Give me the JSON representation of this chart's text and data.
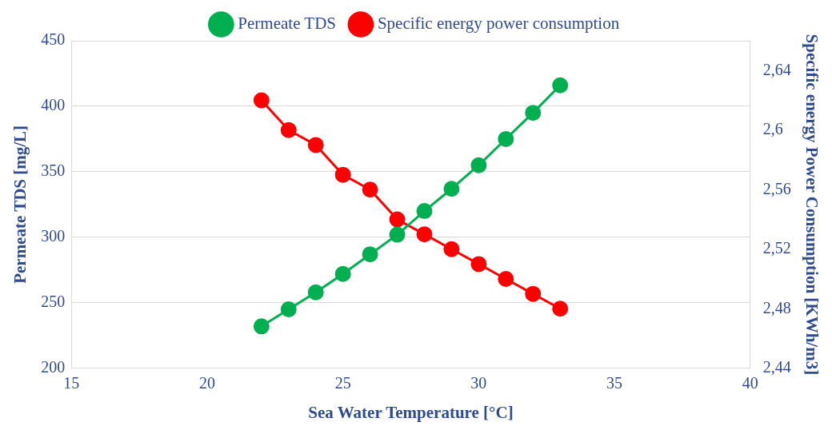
{
  "chart_data": {
    "type": "line",
    "xlabel": "Sea Water Temperature [°C]",
    "ylabel": "Permeate TDS [mg/L]",
    "y2label": "Specific energy Power Consumption [KWh/m3]",
    "x": [
      22,
      23,
      24,
      25,
      26,
      27,
      28,
      29,
      30,
      31,
      32,
      33
    ],
    "series": [
      {
        "name": "Permeate TDS",
        "color": "#00b050",
        "values": [
          232,
          245,
          258,
          272,
          287,
          302,
          320,
          337,
          355,
          375,
          395,
          416
        ]
      },
      {
        "name": "Specific energy power consumption",
        "color": "#ff0000",
        "axis": "y2",
        "values": [
          2.62,
          2.6,
          2.59,
          2.57,
          2.56,
          2.54,
          2.53,
          2.52,
          2.51,
          2.5,
          2.49,
          2.48
        ]
      }
    ],
    "xlim": [
      15,
      40
    ],
    "xticks": [
      15,
      20,
      25,
      30,
      35,
      40
    ],
    "ylim": [
      200,
      450
    ],
    "yticks": [
      200,
      250,
      300,
      350,
      400,
      450
    ],
    "y2lim": [
      2.44,
      2.66
    ],
    "y2ticks": [
      {
        "value": 2.44,
        "label": "2,44"
      },
      {
        "value": 2.48,
        "label": "2,48"
      },
      {
        "value": 2.52,
        "label": "2,52"
      },
      {
        "value": 2.56,
        "label": "2,56"
      },
      {
        "value": 2.6,
        "label": "2,6"
      },
      {
        "value": 2.64,
        "label": "2,64"
      }
    ],
    "grid": "y",
    "legend": "top",
    "marker": "circle",
    "line_style": "solid"
  }
}
